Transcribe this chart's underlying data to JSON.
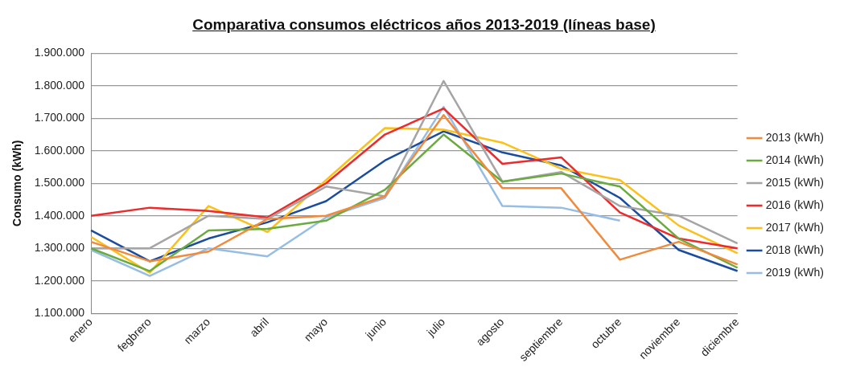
{
  "chart_data": {
    "type": "line",
    "title": "Comparativa consumos eléctricos años 2013-2019 (líneas base)",
    "ylabel": "Consumo (kWh)",
    "categories": [
      "enero",
      "fegbrero",
      "marzo",
      "abril",
      "mayo",
      "junio",
      "julio",
      "agosto",
      "septiembre",
      "octubre",
      "noviembre",
      "diciembre"
    ],
    "series": [
      {
        "name": "2013 (kWh)",
        "color": "#f28a3c",
        "values": [
          1320000,
          1260000,
          1290000,
          1390000,
          1400000,
          1460000,
          1710000,
          1485000,
          1485000,
          1265000,
          1320000,
          1250000
        ]
      },
      {
        "name": "2014 (kWh)",
        "color": "#6aab3f",
        "values": [
          1300000,
          1230000,
          1355000,
          1360000,
          1385000,
          1480000,
          1650000,
          1505000,
          1530000,
          1490000,
          1330000,
          1240000
        ]
      },
      {
        "name": "2015 (kWh)",
        "color": "#a5a5a5",
        "values": [
          1300000,
          1300000,
          1400000,
          1390000,
          1490000,
          1460000,
          1815000,
          1505000,
          1535000,
          1430000,
          1400000,
          1315000
        ]
      },
      {
        "name": "2016 (kWh)",
        "color": "#ee2a2a",
        "values": [
          1400000,
          1425000,
          1415000,
          1395000,
          1500000,
          1650000,
          1730000,
          1560000,
          1580000,
          1410000,
          1330000,
          1300000
        ]
      },
      {
        "name": "2017 (kWh)",
        "color": "#fcc01a",
        "values": [
          1335000,
          1225000,
          1430000,
          1350000,
          1510000,
          1670000,
          1665000,
          1625000,
          1545000,
          1510000,
          1370000,
          1285000
        ]
      },
      {
        "name": "2018 (kWh)",
        "color": "#1a4da0",
        "values": [
          1355000,
          1260000,
          1330000,
          1380000,
          1445000,
          1570000,
          1660000,
          1595000,
          1555000,
          1455000,
          1295000,
          1230000
        ]
      },
      {
        "name": "2019 (kWh)",
        "color": "#96bde4",
        "values": [
          1295000,
          1215000,
          1300000,
          1275000,
          1395000,
          1455000,
          1735000,
          1430000,
          1425000,
          1385000,
          null,
          null
        ]
      }
    ],
    "ylim": [
      1100000,
      1900000
    ],
    "yticks": [
      {
        "value": 1100000,
        "label": "1.100.000"
      },
      {
        "value": 1200000,
        "label": "1.200.000"
      },
      {
        "value": 1300000,
        "label": "1.300.000"
      },
      {
        "value": 1400000,
        "label": "1.400.000"
      },
      {
        "value": 1500000,
        "label": "1.500.000"
      },
      {
        "value": 1600000,
        "label": "1.600.000"
      },
      {
        "value": 1700000,
        "label": "1.700.000"
      },
      {
        "value": 1800000,
        "label": "1.800.000"
      },
      {
        "value": 1900000,
        "label": "1.900.000"
      }
    ],
    "grid": "y",
    "legend": "right",
    "marker": "none",
    "line_style": "solid"
  }
}
